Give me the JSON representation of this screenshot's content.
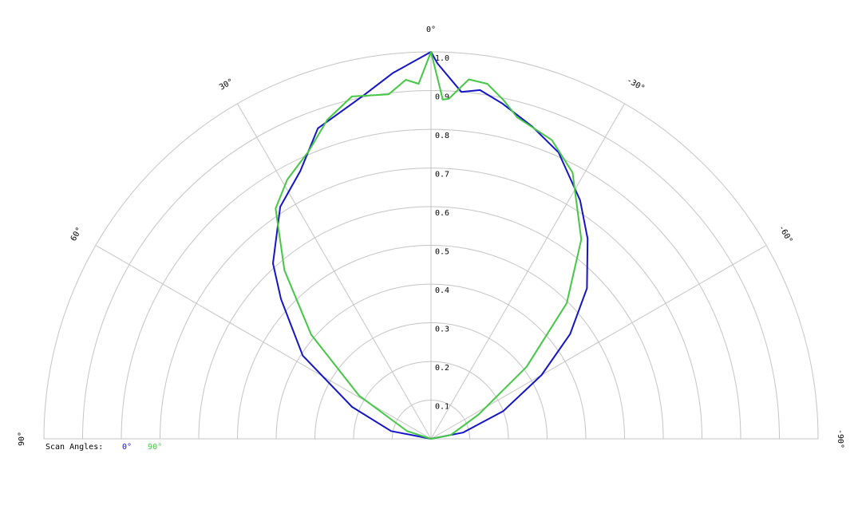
{
  "chart_data": {
    "type": "polar",
    "rlim": [
      0,
      1
    ],
    "rticks": [
      0.1,
      0.2,
      0.3,
      0.4,
      0.5,
      0.6,
      0.7,
      0.8,
      0.9,
      {
        "value": 1,
        "label": "1.0"
      }
    ],
    "thetalim": [
      -90,
      90
    ],
    "thetaticks": [
      {
        "value": 90,
        "label": "90°"
      },
      {
        "value": 60,
        "label": "60°"
      },
      {
        "value": 30,
        "label": "30°"
      },
      {
        "value": 0,
        "label": "0°"
      },
      {
        "value": -30,
        "label": "-30°"
      },
      {
        "value": -60,
        "label": "-60°"
      },
      {
        "value": -90,
        "label": "-90°"
      }
    ],
    "legend_title": "Scan Angles:",
    "series": [
      {
        "name": "0°",
        "color": "#1414c8",
        "angles": [
          90,
          79,
          68,
          57,
          47,
          42,
          33,
          26,
          20,
          11,
          6,
          0,
          -1,
          -5,
          -8,
          -12,
          -18,
          -24,
          -32,
          -38,
          -46,
          -53,
          -60,
          -69,
          -79,
          -90
        ],
        "values": [
          0,
          0.105,
          0.22,
          0.395,
          0.53,
          0.61,
          0.715,
          0.77,
          0.854,
          0.905,
          0.95,
          1.0,
          0.97,
          0.9,
          0.91,
          0.886,
          0.848,
          0.81,
          0.727,
          0.657,
          0.56,
          0.45,
          0.33,
          0.2,
          0.084,
          0
        ]
      },
      {
        "name": "90°",
        "color": "#44c844",
        "angles": [
          90,
          72,
          59,
          49,
          41,
          34,
          29,
          23,
          18,
          13,
          7,
          4,
          2,
          0,
          -2,
          -3,
          -6,
          -9,
          -12,
          -15,
          -22,
          -28,
          -37,
          -45,
          -53,
          -63,
          -79,
          -90
        ],
        "values": [
          0,
          0.065,
          0.217,
          0.41,
          0.577,
          0.718,
          0.766,
          0.808,
          0.867,
          0.908,
          0.897,
          0.93,
          0.918,
          1.0,
          0.877,
          0.88,
          0.934,
          0.929,
          0.896,
          0.86,
          0.833,
          0.779,
          0.645,
          0.496,
          0.309,
          0.138,
          0.052,
          0
        ]
      }
    ]
  }
}
